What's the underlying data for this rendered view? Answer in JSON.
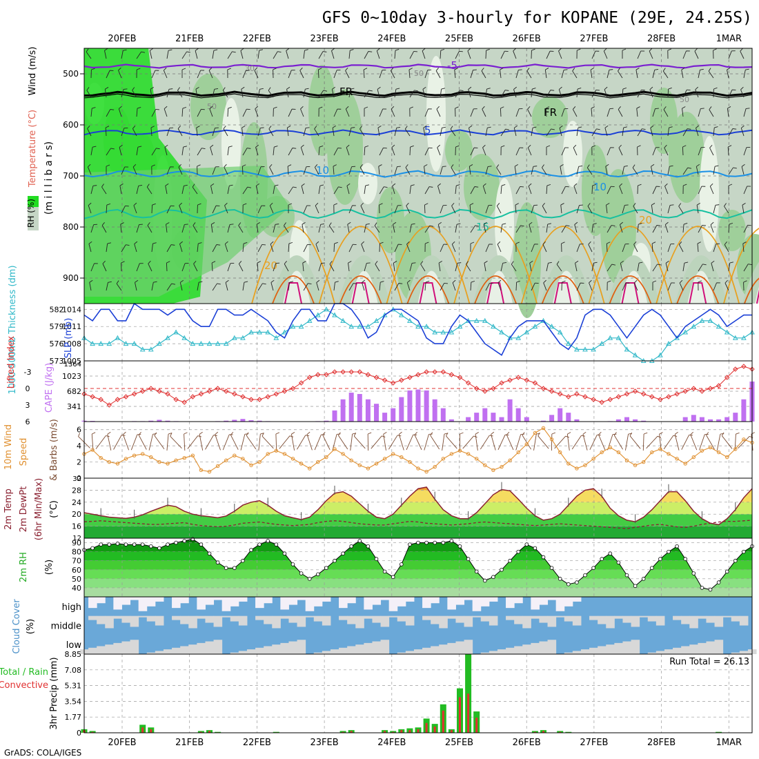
{
  "page": {
    "title": "GFS 0~10day 3-hourly for KOPANE (29E, 24.25S)",
    "credit": "GrADS: COLA/IGES"
  },
  "colors": {
    "purple": "#7a1fd0",
    "black": "#000000",
    "blue": "#1a3fd6",
    "lightblue": "#1a90e6",
    "teal": "#17c0a0",
    "orange": "#e8a020",
    "darkorange": "#e06010",
    "magenta": "#d0107a",
    "slp": "#1a3fd6",
    "thick": "#30b8c8",
    "li": "#e03030",
    "cape": "#c070f0",
    "wind10": "#e09030",
    "temp": "#8a2030",
    "rain": "#22bb22",
    "conv": "#e03030",
    "cloudBlue": "#6aa8d8",
    "cloudGray": "#d8d8d8",
    "cloudHigh": "#f4f0f8"
  },
  "chart_data": [
    {
      "type": "line",
      "name": "upper-air",
      "title": "GFS 0~10day 3-hourly for KOPANE (29E, 24.25S)",
      "x_ticks": [
        "20FEB",
        "21FEB",
        "22FEB",
        "23FEB",
        "24FEB",
        "25FEB",
        "26FEB",
        "27FEB",
        "28FEB",
        "1MAR"
      ],
      "ylabel_parts": [
        "RH (%)",
        "Temperature (°C)",
        "Wind (m/s)"
      ],
      "ylabel_unit": "(m i l l i b a r s)",
      "y_ticks": [
        500,
        600,
        700,
        800,
        900
      ],
      "ylim": [
        450,
        950
      ],
      "isotherm_labels": [
        "-5",
        "FR",
        "FR",
        "5",
        "10",
        "10",
        "15",
        "20",
        "20"
      ],
      "rh_labels": [
        "30",
        "50",
        "50",
        "50"
      ]
    },
    {
      "type": "line",
      "name": "slp-thickness",
      "ylabel_left": "1000-500mb Thickness (dm)",
      "ylabel_right": "SLP (mb)",
      "left_ticks": [
        582,
        579,
        576,
        573
      ],
      "right_ticks": [
        1014,
        1011,
        1008,
        1005
      ],
      "slp": [
        1013,
        1012,
        1014,
        1014,
        1012,
        1012,
        1015,
        1014,
        1014,
        1014,
        1013,
        1014,
        1014,
        1012,
        1011,
        1011,
        1014,
        1014,
        1013,
        1013,
        1014,
        1013,
        1012,
        1010,
        1009,
        1012,
        1014,
        1014,
        1012,
        1012,
        1015,
        1015,
        1014,
        1012,
        1009,
        1010,
        1013,
        1014,
        1014,
        1013,
        1012,
        1009,
        1008,
        1008,
        1011,
        1013,
        1012,
        1010,
        1008,
        1007,
        1006,
        1009,
        1011,
        1012,
        1012,
        1012,
        1010,
        1008,
        1007,
        1009,
        1013,
        1014,
        1014,
        1013,
        1011,
        1009,
        1011,
        1013,
        1014,
        1013,
        1011,
        1009,
        1011,
        1012,
        1013,
        1014,
        1013,
        1011,
        1012,
        1013,
        1013
      ],
      "thickness": [
        577,
        576,
        576,
        576,
        577,
        576,
        576,
        575,
        575,
        576,
        577,
        578,
        577,
        576,
        576,
        576,
        576,
        576,
        577,
        577,
        578,
        578,
        578,
        577,
        578,
        579,
        579,
        580,
        581,
        582,
        581,
        580,
        579,
        579,
        579,
        580,
        581,
        582,
        581,
        580,
        579,
        579,
        578,
        578,
        578,
        579,
        580,
        580,
        580,
        579,
        578,
        577,
        577,
        578,
        579,
        580,
        579,
        578,
        576,
        575,
        575,
        575,
        576,
        577,
        577,
        575,
        574,
        573,
        573,
        574,
        576,
        577,
        578,
        579,
        580,
        580,
        579,
        578,
        577,
        577,
        578
      ],
      "ylim_left": [
        573,
        583
      ],
      "ylim_right": [
        1005,
        1015
      ]
    },
    {
      "type": "bar",
      "name": "cape-li",
      "ylabel_left": "Lifted Index",
      "ylabel_right": "CAPE (J/kg)",
      "li_ticks": [
        "-3",
        "0",
        "3",
        "6"
      ],
      "cape_ticks": [
        1023,
        682,
        341
      ],
      "cape_top_label": "1364",
      "cape": [
        20,
        15,
        0,
        0,
        0,
        0,
        10,
        10,
        20,
        40,
        20,
        10,
        0,
        0,
        0,
        0,
        10,
        20,
        40,
        60,
        30,
        20,
        10,
        0,
        0,
        0,
        0,
        0,
        10,
        20,
        250,
        500,
        650,
        620,
        500,
        400,
        200,
        300,
        550,
        700,
        720,
        700,
        500,
        300,
        50,
        0,
        100,
        200,
        300,
        200,
        100,
        500,
        300,
        100,
        0,
        20,
        150,
        300,
        200,
        50,
        0,
        0,
        0,
        10,
        50,
        100,
        50,
        20,
        0,
        0,
        0,
        0,
        100,
        150,
        100,
        50,
        50,
        100,
        200,
        500,
        900,
        1050,
        800,
        500,
        200,
        100,
        50,
        100
      ],
      "li": [
        1,
        1.5,
        2,
        3,
        2,
        1.5,
        1,
        0.5,
        0,
        0.5,
        1,
        2,
        2.5,
        1.5,
        1,
        0.5,
        0,
        0.5,
        1,
        1.5,
        2,
        2,
        1.5,
        1,
        0.5,
        0,
        -1,
        -2,
        -2.5,
        -2.5,
        -3,
        -3,
        -3,
        -3,
        -2.5,
        -2,
        -1.5,
        -1,
        -1.5,
        -2,
        -2.5,
        -3,
        -3,
        -3,
        -2.5,
        -2,
        -1,
        0,
        0.5,
        0,
        -1,
        -1.5,
        -2,
        -1.5,
        -1,
        0,
        0.5,
        1,
        1.5,
        1,
        1.5,
        2,
        2.5,
        2,
        1.5,
        1,
        0.5,
        1,
        1.5,
        2,
        1.5,
        1,
        0.5,
        0,
        0.5,
        0,
        -0.5,
        -2,
        -3.5,
        -4,
        -3.5,
        -2,
        -1,
        0,
        0.5,
        0
      ],
      "ylim_li": [
        6,
        -5
      ],
      "ylim_cape": [
        0,
        1364
      ]
    },
    {
      "type": "line",
      "name": "wind10m",
      "ylabel": "10m Wind Speed & Barbs (m/s)",
      "y_ticks": [
        6,
        4,
        2,
        0
      ],
      "speed": [
        3,
        3.5,
        2.5,
        2,
        1.8,
        2.4,
        2.8,
        3,
        2.6,
        2,
        1.8,
        2.2,
        2.5,
        2.8,
        1,
        0.8,
        1.5,
        2.2,
        2.8,
        2.4,
        1.6,
        2,
        3,
        3.4,
        3,
        2.4,
        1.8,
        1.2,
        2,
        2.6,
        3.6,
        3,
        2.2,
        1.6,
        1.2,
        1.8,
        2.4,
        3,
        2.6,
        2,
        1.2,
        0.8,
        1.4,
        2.4,
        3,
        3.4,
        3,
        2.4,
        1.6,
        1,
        1.4,
        2.2,
        3.2,
        4.2,
        5.6,
        6.2,
        4.8,
        3.2,
        1.8,
        1.2,
        1.6,
        2.4,
        3.2,
        3.8,
        3.2,
        2.2,
        1.6,
        2,
        3.2,
        3.6,
        3,
        2.4,
        1.8,
        2.6,
        3.4,
        3.8,
        3.2,
        2.6,
        3.6,
        4.8,
        4.4,
        3.4,
        2.4,
        2.8,
        3.4,
        2.2,
        1.4,
        2
      ],
      "ylim": [
        0,
        7
      ]
    },
    {
      "type": "area",
      "name": "temperature",
      "ylabel": "2m Temp 2m DewPt (6hr Min/Max) (°C)",
      "y_ticks": [
        28,
        24,
        20,
        16
      ],
      "extra_ticks": [
        "32",
        "12"
      ],
      "temp": [
        20.5,
        20,
        19.5,
        19,
        18.8,
        18.6,
        19,
        19.8,
        21,
        22,
        23,
        22.5,
        21,
        20,
        19.5,
        19.2,
        18.8,
        19.4,
        21,
        23,
        24,
        24.5,
        23,
        21,
        19.5,
        18.8,
        18.2,
        19,
        21.5,
        24.5,
        27,
        27.5,
        26,
        23.5,
        21,
        19,
        18.5,
        20,
        23,
        26,
        28.5,
        29,
        25,
        21.5,
        19.5,
        18.5,
        18.5,
        20.5,
        23.5,
        26.5,
        28.2,
        27.8,
        25,
        22,
        19.5,
        18,
        18.5,
        20,
        23,
        26,
        28,
        28.5,
        26,
        22,
        19.5,
        18,
        17.5,
        19,
        21.5,
        24.5,
        27.5,
        27.5,
        24.5,
        21,
        18.5,
        17,
        16.5,
        18.5,
        21.5,
        25.5,
        28.5,
        29,
        27,
        22.5,
        19.5,
        19,
        18.5,
        18.2,
        18,
        22.5
      ],
      "dewpt": [
        17.5,
        17.6,
        17.8,
        17.6,
        17.4,
        17.2,
        17,
        16.8,
        16.6,
        16.6,
        16.8,
        17,
        17.2,
        16.6,
        16.2,
        16,
        15.8,
        16,
        16.4,
        17,
        17.2,
        17.4,
        17,
        16.6,
        16.4,
        16.2,
        16.4,
        16.6,
        17.2,
        17.6,
        17.8,
        17.6,
        17.2,
        16.8,
        16.6,
        16.4,
        16.4,
        16.8,
        17.2,
        17.6,
        17.4,
        17,
        16.8,
        16.6,
        16.4,
        16.6,
        16.8,
        17.2,
        17.4,
        17.2,
        17,
        16.8,
        16.6,
        16.4,
        16.2,
        16.4,
        16.6,
        16.8,
        16.6,
        16.4,
        16.2,
        16,
        15.8,
        15.6,
        15.4,
        15.2,
        15.6,
        16,
        16.4,
        16.6,
        16.2,
        15.8,
        15.6,
        16,
        16.6,
        17,
        17.4,
        17.6,
        17.6,
        17.8,
        18,
        17.6,
        17.2,
        17,
        16.8,
        16.8,
        16.6,
        17.4
      ],
      "ylim": [
        12,
        32
      ]
    },
    {
      "type": "area",
      "name": "rh2m",
      "ylabel": "2m RH (%)",
      "y_ticks": [
        90,
        80,
        70,
        60,
        50,
        40
      ],
      "rh": [
        82,
        84,
        88,
        88,
        89,
        88,
        88,
        88,
        86,
        84,
        88,
        90,
        92,
        94,
        88,
        78,
        68,
        62,
        62,
        70,
        82,
        88,
        92,
        88,
        78,
        66,
        56,
        50,
        55,
        62,
        70,
        78,
        86,
        92,
        86,
        72,
        58,
        52,
        66,
        88,
        90,
        90,
        90,
        90,
        92,
        86,
        72,
        58,
        48,
        52,
        60,
        70,
        80,
        88,
        84,
        74,
        62,
        50,
        44,
        46,
        54,
        62,
        72,
        78,
        68,
        54,
        42,
        50,
        62,
        72,
        80,
        86,
        72,
        56,
        40,
        38,
        46,
        58,
        70,
        80,
        86,
        78,
        70,
        62,
        70,
        80,
        84,
        84,
        86,
        70
      ],
      "ylim": [
        30,
        95
      ]
    },
    {
      "type": "heatmap",
      "name": "cloud-cover",
      "ylabel": "Cloud Cover (%)",
      "levels": [
        "high",
        "middle",
        "low"
      ]
    },
    {
      "type": "bar",
      "name": "precip",
      "ylabel": "3hr Precip (mm)",
      "ylabel_side": "Total / Rain Convective",
      "y_ticks": [
        "8.85",
        "7.08",
        "5.31",
        "3.54",
        "1.77",
        "0"
      ],
      "run_total": "Run Total = 26.13",
      "precip": [
        0.4,
        0.2,
        0,
        0,
        0,
        0,
        0,
        0.9,
        0.6,
        0,
        0,
        0,
        0,
        0,
        0.2,
        0.3,
        0.1,
        0,
        0,
        0,
        0,
        0,
        0,
        0.1,
        0,
        0,
        0,
        0,
        0,
        0,
        0,
        0.2,
        0.3,
        0,
        0,
        0,
        0.3,
        0.2,
        0.4,
        0.5,
        0.6,
        1.6,
        1.0,
        3.2,
        0.4,
        5.0,
        8.85,
        2.4,
        0,
        0,
        0,
        0,
        0,
        0,
        0.2,
        0.3,
        0,
        0.2,
        0.1,
        0,
        0,
        0,
        0,
        0,
        0,
        0,
        0,
        0,
        0,
        0,
        0,
        0,
        0,
        0,
        0,
        0,
        0.1,
        0,
        0,
        0,
        0,
        0,
        0,
        0,
        0,
        0.2,
        0,
        0,
        0.1,
        0
      ],
      "conv": [
        0.3,
        0.1,
        0,
        0,
        0,
        0,
        0,
        0.6,
        0.4,
        0,
        0,
        0,
        0,
        0,
        0.1,
        0.2,
        0.05,
        0,
        0,
        0,
        0,
        0,
        0,
        0.05,
        0,
        0,
        0,
        0,
        0,
        0,
        0,
        0.1,
        0.2,
        0,
        0,
        0,
        0.2,
        0.1,
        0.3,
        0.3,
        0.4,
        1.1,
        0.7,
        2.5,
        0.3,
        4.0,
        4.4,
        1.7,
        0,
        0,
        0,
        0,
        0,
        0,
        0.1,
        0.2,
        0,
        0.1,
        0.05,
        0,
        0,
        0,
        0,
        0,
        0,
        0,
        0,
        0,
        0,
        0,
        0,
        0,
        0,
        0,
        0,
        0,
        0.05,
        0,
        0,
        0,
        0,
        0,
        0,
        0,
        0,
        0.1,
        0,
        0,
        0.05,
        0
      ],
      "ylim": [
        0,
        8.85
      ]
    }
  ]
}
